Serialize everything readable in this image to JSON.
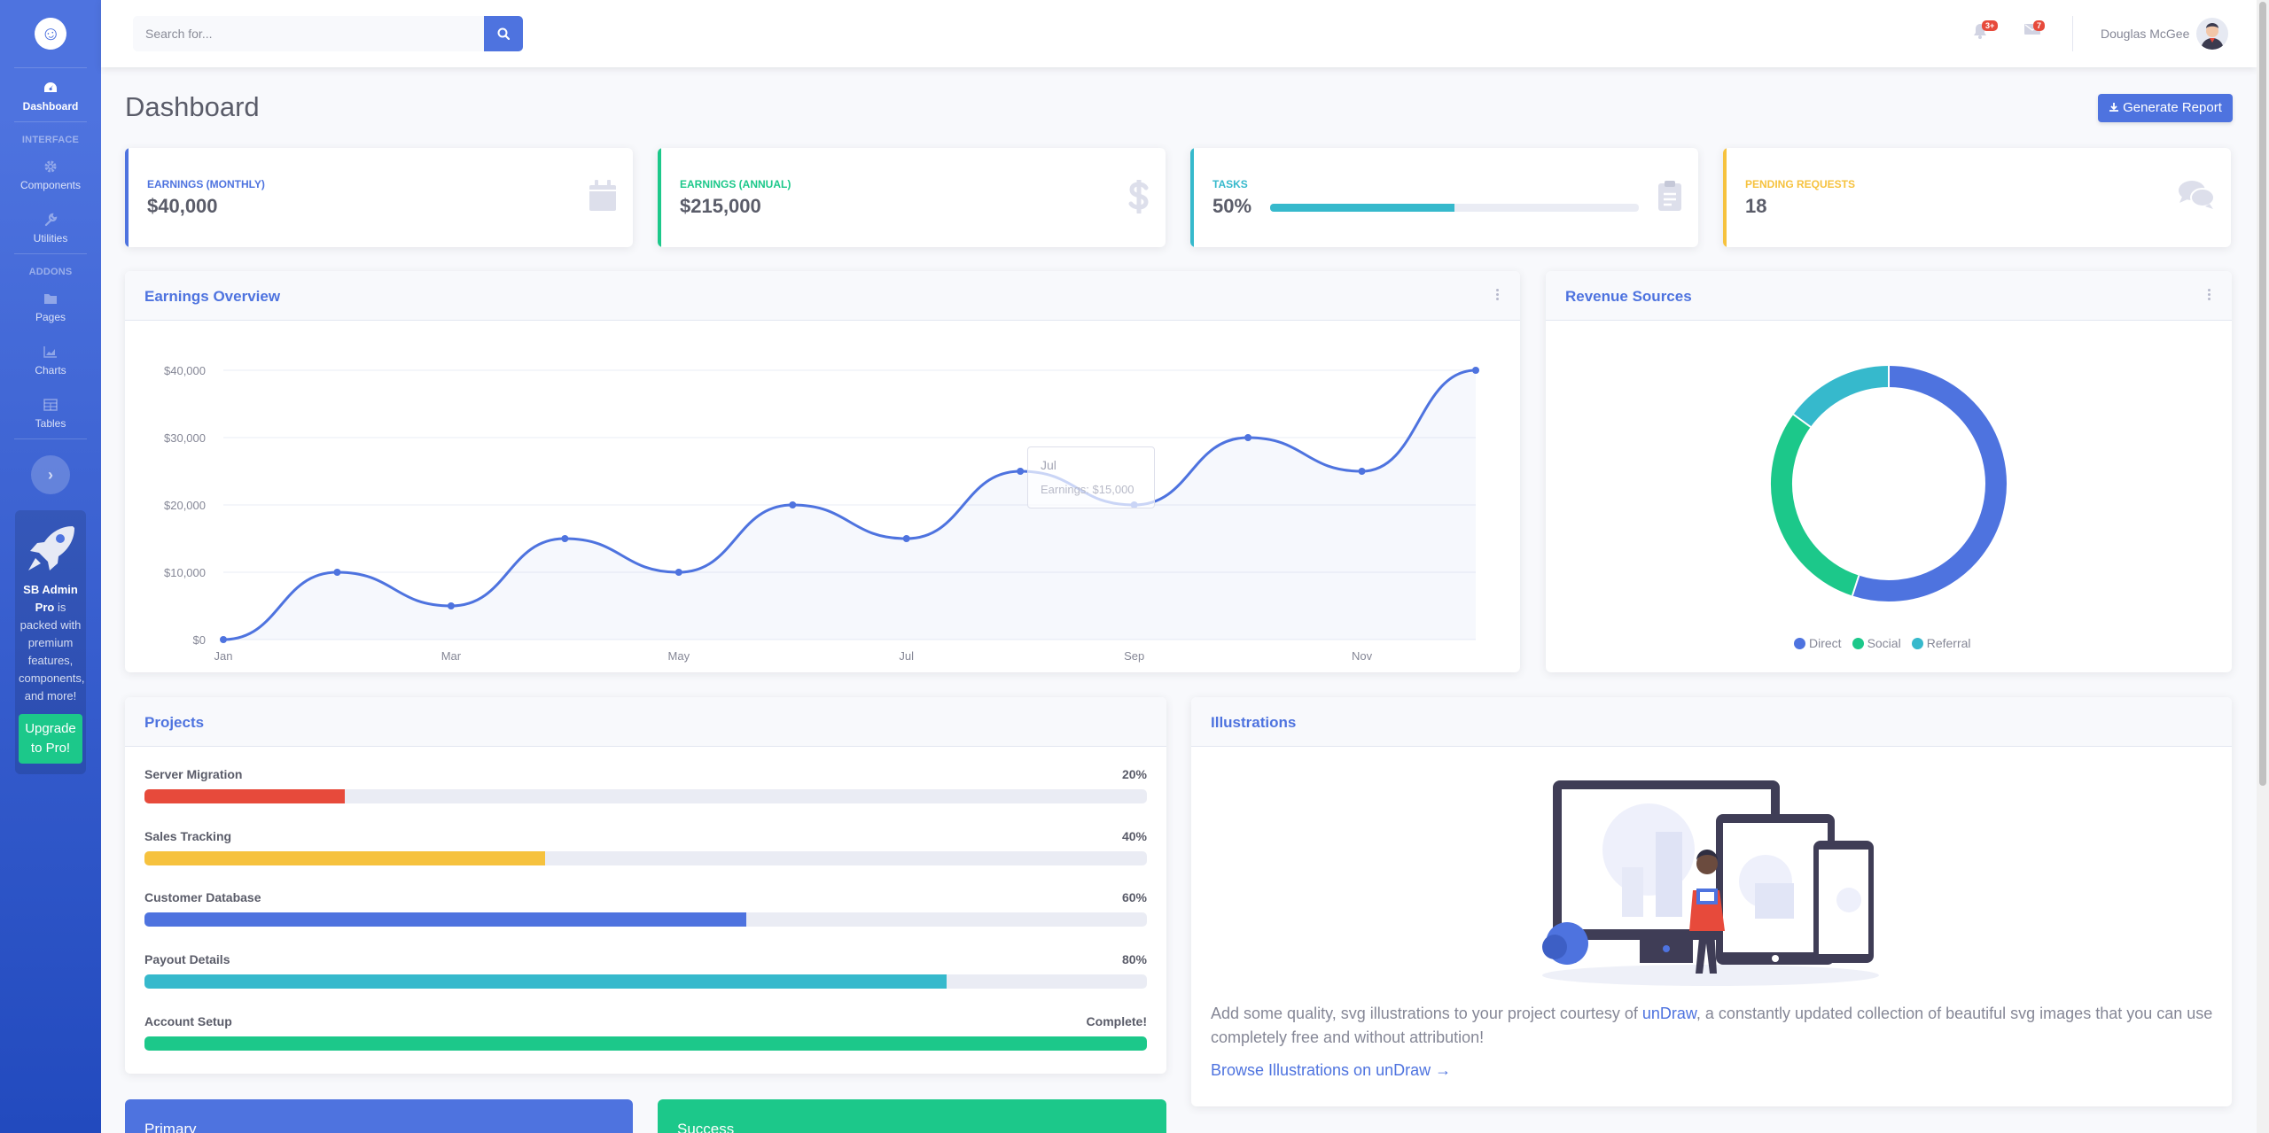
{
  "sidebar": {
    "brand_glyph": "☺",
    "nav": [
      {
        "label": "Dashboard",
        "icon": "tachometer-icon"
      },
      {
        "label": "Components",
        "icon": "cog-icon"
      },
      {
        "label": "Utilities",
        "icon": "wrench-icon"
      },
      {
        "label": "Pages",
        "icon": "folder-icon"
      },
      {
        "label": "Charts",
        "icon": "chart-area-icon"
      },
      {
        "label": "Tables",
        "icon": "table-icon"
      }
    ],
    "headings": [
      "INTERFACE",
      "ADDONS"
    ],
    "toggle_glyph": "›",
    "promo": {
      "title": "SB Admin Pro",
      "text": "is packed with premium features, components, and more!",
      "button": "Upgrade to Pro!"
    }
  },
  "topbar": {
    "search_placeholder": "Search for...",
    "alerts_badge": "3+",
    "messages_badge": "7",
    "user_name": "Douglas McGee"
  },
  "main": {
    "title": "Dashboard",
    "report_button": "Generate Report"
  },
  "stats": [
    {
      "label": "EARNINGS (MONTHLY)",
      "value": "$40,000",
      "color": "#4e73df",
      "icon": "calendar-icon"
    },
    {
      "label": "EARNINGS (ANNUAL)",
      "value": "$215,000",
      "color": "#1cc88a",
      "icon": "dollar-icon"
    },
    {
      "label": "TASKS",
      "value": "50%",
      "progress": 0.5,
      "color": "#36b9cc",
      "icon": "clipboard-icon"
    },
    {
      "label": "PENDING REQUESTS",
      "value": "18",
      "color": "#f6c23e",
      "icon": "comments-icon"
    }
  ],
  "earnings_card": {
    "title": "Earnings Overview"
  },
  "revenue_card": {
    "title": "Revenue Sources"
  },
  "projects_card": {
    "title": "Projects",
    "items": [
      {
        "name": "Server Migration",
        "pct": "20%",
        "value": 0.2,
        "color": "#e74a3b"
      },
      {
        "name": "Sales Tracking",
        "pct": "40%",
        "value": 0.4,
        "color": "#f6c23e"
      },
      {
        "name": "Customer Database",
        "pct": "60%",
        "value": 0.6,
        "color": "#4e73df"
      },
      {
        "name": "Payout Details",
        "pct": "80%",
        "value": 0.8,
        "color": "#36b9cc"
      },
      {
        "name": "Account Setup",
        "pct": "Complete!",
        "value": 1.0,
        "color": "#1cc88a"
      }
    ]
  },
  "illustrations_card": {
    "title": "Illustrations",
    "text_before": "Add some quality, svg illustrations to your project courtesy of ",
    "link_text": "unDraw",
    "text_after": ", a constantly updated collection of beautiful svg images that you can use completely free and without attribution!",
    "browse_link": "Browse Illustrations on unDraw →"
  },
  "bottom_cards": [
    {
      "label": "Primary",
      "color": "#4e73df"
    },
    {
      "label": "Success",
      "color": "#1cc88a"
    }
  ],
  "chart_data": [
    {
      "type": "area",
      "x": [
        "Jan",
        "Feb",
        "Mar",
        "Apr",
        "May",
        "Jun",
        "Jul",
        "Aug",
        "Sep",
        "Oct",
        "Nov",
        "Dec"
      ],
      "x_tick_labels": [
        "Jan",
        "Mar",
        "May",
        "Jul",
        "Sep",
        "Nov"
      ],
      "series": [
        {
          "name": "Earnings",
          "values": [
            0,
            10000,
            5000,
            15000,
            10000,
            20000,
            15000,
            25000,
            20000,
            30000,
            25000,
            40000
          ]
        }
      ],
      "y_tick_labels": [
        "$0",
        "$10,000",
        "$20,000",
        "$30,000",
        "$40,000"
      ],
      "ylim": [
        0,
        40000
      ],
      "grid": true,
      "color": "#4e73df",
      "tooltip": {
        "title": "Jul",
        "text": "Earnings: $15,000"
      }
    },
    {
      "type": "pie",
      "categories": [
        "Direct",
        "Social",
        "Referral"
      ],
      "values": [
        55,
        30,
        15
      ],
      "colors": [
        "#4e73df",
        "#1cc88a",
        "#36b9cc"
      ],
      "legend": "bottom"
    }
  ]
}
